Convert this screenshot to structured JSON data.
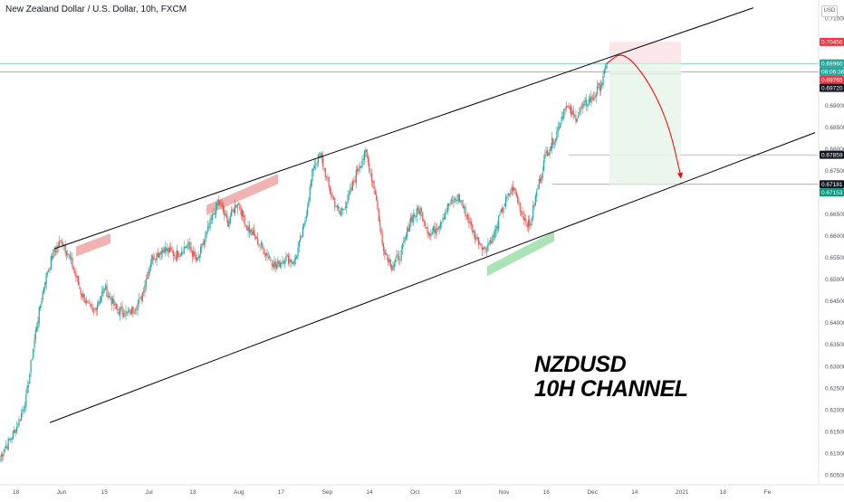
{
  "header": {
    "symbol_title": "New Zealand Dollar / U.S. Dollar, 10h, FXCM",
    "currency": "USD"
  },
  "annotation": {
    "line1": "NZDUSD",
    "line2": "10H CHANNEL"
  },
  "chart_data": {
    "type": "candlestick",
    "title": "New Zealand Dollar / U.S. Dollar, 10h, FXCM",
    "ylim": [
      0.6027,
      0.7142
    ],
    "y_ticks": [
      "0.71000",
      "0.70500",
      "0.70000",
      "0.69500",
      "0.69000",
      "0.68500",
      "0.68000",
      "0.67500",
      "0.67000",
      "0.66500",
      "0.66000",
      "0.65500",
      "0.65000",
      "0.64500",
      "0.64000",
      "0.63500",
      "0.63000",
      "0.62500",
      "0.62000",
      "0.61500",
      "0.61000",
      "0.60500"
    ],
    "x_ticks": [
      "18",
      "Jun",
      "15",
      "Jul",
      "13",
      "Aug",
      "17",
      "Sep",
      "14",
      "Oct",
      "19",
      "Nov",
      "16",
      "Dec",
      "14",
      "2021",
      "18",
      "Fe"
    ],
    "price_badges": [
      {
        "label": "0.70456",
        "value": 0.70456,
        "color": "#f23645"
      },
      {
        "label": "0.69960",
        "value": 0.6996,
        "color": "#26a69a"
      },
      {
        "label": "08:06:36",
        "value": 0.6986,
        "color": "#26a69a"
      },
      {
        "label": "0.69765",
        "value": 0.69765,
        "color": "#f23645"
      },
      {
        "label": "0.69720",
        "value": 0.6972,
        "color": "#131722"
      },
      {
        "label": "0.67859",
        "value": 0.67859,
        "color": "#131722"
      },
      {
        "label": "0.67181",
        "value": 0.67181,
        "color": "#131722"
      },
      {
        "label": "0.67153",
        "value": 0.67153,
        "color": "#089981"
      }
    ],
    "colors": {
      "up": "#26a69a",
      "down": "#ef5350",
      "channel": "#000000",
      "forecast": "#ff0000",
      "support_zone": "#66cc77",
      "resistance_zone": "#e57373"
    },
    "anchors": [
      [
        0,
        0.609
      ],
      [
        8,
        0.613
      ],
      [
        15,
        0.6165
      ],
      [
        22,
        0.6225
      ],
      [
        30,
        0.638
      ],
      [
        38,
        0.65
      ],
      [
        45,
        0.656
      ],
      [
        52,
        0.659
      ],
      [
        60,
        0.654
      ],
      [
        68,
        0.647
      ],
      [
        78,
        0.642
      ],
      [
        88,
        0.648
      ],
      [
        98,
        0.643
      ],
      [
        108,
        0.642
      ],
      [
        118,
        0.645
      ],
      [
        128,
        0.655
      ],
      [
        138,
        0.657
      ],
      [
        148,
        0.6555
      ],
      [
        158,
        0.658
      ],
      [
        166,
        0.654
      ],
      [
        176,
        0.662
      ],
      [
        184,
        0.668
      ],
      [
        192,
        0.663
      ],
      [
        200,
        0.668
      ],
      [
        208,
        0.662
      ],
      [
        216,
        0.659
      ],
      [
        224,
        0.656
      ],
      [
        232,
        0.653
      ],
      [
        240,
        0.655
      ],
      [
        248,
        0.654
      ],
      [
        256,
        0.662
      ],
      [
        264,
        0.676
      ],
      [
        270,
        0.6785
      ],
      [
        278,
        0.67
      ],
      [
        286,
        0.665
      ],
      [
        294,
        0.669
      ],
      [
        302,
        0.676
      ],
      [
        308,
        0.679
      ],
      [
        316,
        0.67
      ],
      [
        322,
        0.658
      ],
      [
        330,
        0.653
      ],
      [
        338,
        0.656
      ],
      [
        346,
        0.664
      ],
      [
        354,
        0.666
      ],
      [
        362,
        0.66
      ],
      [
        370,
        0.663
      ],
      [
        378,
        0.667
      ],
      [
        386,
        0.669
      ],
      [
        394,
        0.664
      ],
      [
        400,
        0.66
      ],
      [
        408,
        0.657
      ],
      [
        416,
        0.66
      ],
      [
        424,
        0.667
      ],
      [
        432,
        0.671
      ],
      [
        440,
        0.665
      ],
      [
        446,
        0.662
      ],
      [
        452,
        0.67
      ],
      [
        460,
        0.679
      ],
      [
        468,
        0.683
      ],
      [
        476,
        0.69
      ],
      [
        484,
        0.687
      ],
      [
        492,
        0.69
      ],
      [
        500,
        0.692
      ],
      [
        508,
        0.696
      ],
      [
        511,
        0.6996
      ]
    ],
    "channel_upper": [
      [
        60,
        0.657
      ],
      [
        832,
        0.7124
      ]
    ],
    "channel_lower": [
      [
        55,
        0.617
      ],
      [
        900,
        0.6837
      ]
    ],
    "support_zone": {
      "from": [
        538,
        0.653
      ],
      "to": [
        612,
        0.661
      ]
    },
    "resistance_zones": [
      {
        "from": [
          84,
          0.6575
        ],
        "to": [
          122,
          0.6605
        ]
      },
      {
        "from": [
          228,
          0.667
        ],
        "to": [
          307,
          0.6742
        ]
      }
    ],
    "trade_box": {
      "x0": 673,
      "x1": 752,
      "entry": 0.6996,
      "stop": 0.7046,
      "target": 0.6718
    },
    "forecast_path": [
      [
        670,
        0.6996
      ],
      [
        688,
        0.7025
      ],
      [
        715,
        0.696
      ],
      [
        738,
        0.686
      ],
      [
        752,
        0.6735
      ]
    ],
    "levels": [
      {
        "value": 0.6996,
        "color": "#26a69a",
        "x0": 0,
        "x1": 904
      },
      {
        "value": 0.69765,
        "color": "#f23645",
        "x0": 0,
        "x1": 904
      },
      {
        "value": 0.6972,
        "color": "#131722",
        "x0": 673,
        "x1": 752
      },
      {
        "value": 0.67859,
        "color": "#888888",
        "x0": 628,
        "x1": 904
      },
      {
        "value": 0.67181,
        "color": "#888888",
        "x0": 610,
        "x1": 904
      }
    ]
  }
}
